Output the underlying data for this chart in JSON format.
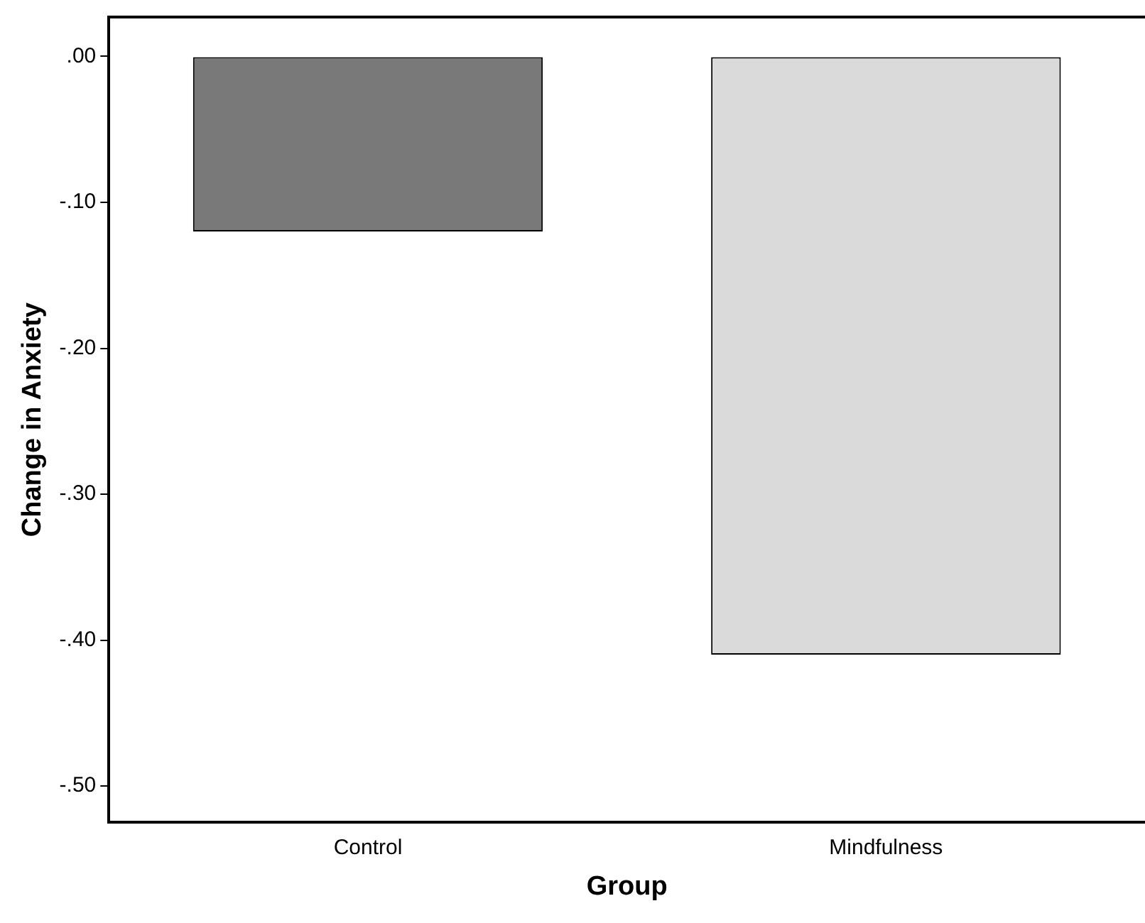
{
  "chart_data": {
    "type": "bar",
    "xlabel": "Group",
    "ylabel": "Change in Anxiety",
    "categories": [
      "Control",
      "Mindfulness"
    ],
    "values": [
      -0.12,
      -0.41
    ],
    "colors": [
      "#797979",
      "#dadada"
    ],
    "ylim": [
      -0.525,
      0.027
    ],
    "yticks": [
      {
        "value": 0,
        "label": ".00"
      },
      {
        "value": -0.1,
        "label": "-.10"
      },
      {
        "value": -0.2,
        "label": "-.20"
      },
      {
        "value": -0.3,
        "label": "-.30"
      },
      {
        "value": -0.4,
        "label": "-.40"
      },
      {
        "value": -0.5,
        "label": "-.50"
      }
    ],
    "grid": false,
    "legend": false
  }
}
